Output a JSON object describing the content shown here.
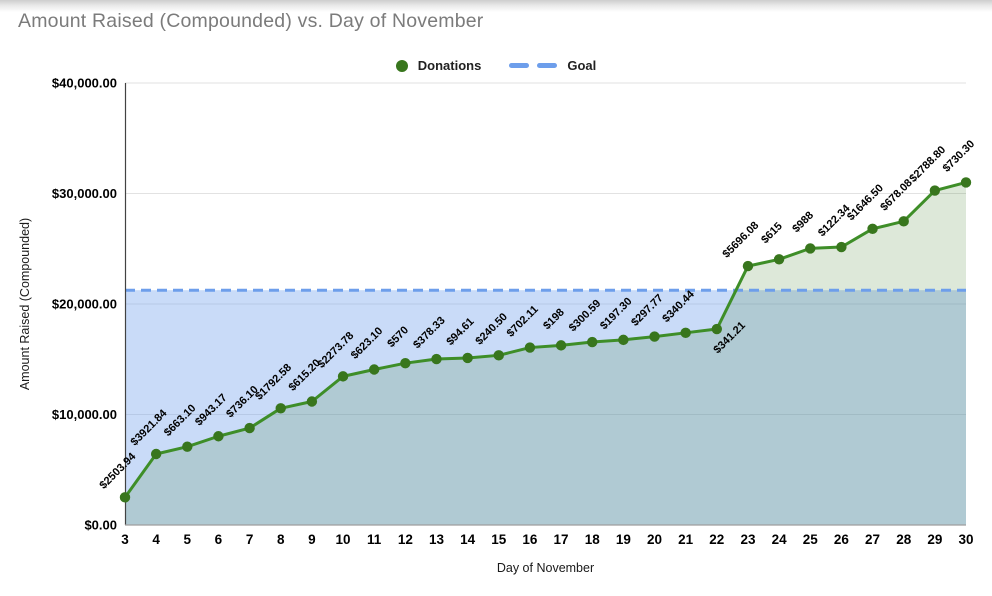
{
  "title": "Amount Raised (Compounded) vs. Day of November",
  "legend": {
    "donations_label": "Donations",
    "goal_label": "Goal"
  },
  "axes": {
    "x_title": "Day of November",
    "y_title": "Amount Raised (Compounded)",
    "y_ticks": [
      "$0.00",
      "$10,000.00",
      "$20,000.00",
      "$30,000.00",
      "$40,000.00"
    ],
    "x_ticks": [
      "3",
      "4",
      "5",
      "6",
      "7",
      "8",
      "9",
      "10",
      "11",
      "12",
      "13",
      "14",
      "15",
      "16",
      "17",
      "18",
      "19",
      "20",
      "21",
      "22",
      "23",
      "24",
      "25",
      "26",
      "27",
      "28",
      "29",
      "30"
    ]
  },
  "colors": {
    "title_text": "#7b7b7b",
    "tick_text": "#000000",
    "donations_green": "#38761d",
    "donations_line_green": "#3e8e28",
    "donations_fill": "rgba(56,118,29,0.17)",
    "goal_blue": "#6d9eeb",
    "goal_fill": "rgba(109,158,235,0.37)",
    "gridline": "#e2e2e2",
    "y_axis_line": "#424242",
    "baseline": "#9e9e9e"
  },
  "chart_data": {
    "type": "area",
    "title": "Amount Raised (Compounded) vs. Day of November",
    "xlabel": "Day of November",
    "ylabel": "Amount Raised (Compounded)",
    "x": [
      3,
      4,
      5,
      6,
      7,
      8,
      9,
      10,
      11,
      12,
      13,
      14,
      15,
      16,
      17,
      18,
      19,
      20,
      21,
      22,
      23,
      24,
      25,
      26,
      27,
      28,
      29,
      30
    ],
    "ylim": [
      0,
      40000
    ],
    "y_tick_step": 10000,
    "grid": "horizontal",
    "legend_position": "top-center",
    "series": [
      {
        "name": "Donations",
        "type": "area",
        "color": "#38761d",
        "line_color": "#3e8e28",
        "fill_color": "rgba(56,118,29,0.17)",
        "values": [
          2503.94,
          6425.78,
          7088.88,
          8032.05,
          8768.15,
          10560.73,
          11175.93,
          13449.71,
          14072.81,
          14642.81,
          15021.14,
          15115.75,
          15356.25,
          16058.36,
          16256.36,
          16556.95,
          16754.25,
          17052.02,
          17392.46,
          17733.67,
          23429.75,
          24044.75,
          25032.75,
          25155.09,
          26801.59,
          27479.67,
          30268.47,
          30998.77
        ],
        "daily_amounts": [
          2503.94,
          3921.84,
          663.1,
          943.17,
          736.1,
          1792.58,
          615.2,
          2273.78,
          623.1,
          570,
          378.33,
          94.61,
          240.5,
          702.11,
          198,
          300.59,
          197.3,
          297.77,
          340.44,
          341.21,
          5696.08,
          615,
          988,
          122.34,
          1646.5,
          678.08,
          2788.8,
          730.3
        ],
        "point_labels": [
          "$2503.94",
          "$3921.84",
          "$663.10",
          "$943.17",
          "$736.10",
          "$1792.58",
          "$615.20",
          "$2273.78",
          "$623.10",
          "$570",
          "$378.33",
          "$94.61",
          "$240.50",
          "$702.11",
          "$198",
          "$300.59",
          "$197.30",
          "$297.77",
          "$340.44",
          "$341.21",
          "$5696.08",
          "$615",
          "$988",
          "$122.34",
          "$1646.50",
          "$678.08",
          "$2788.80",
          "$730.30"
        ],
        "labels_below_indices": [
          19
        ]
      },
      {
        "name": "Goal",
        "type": "dashed-line",
        "color": "#6d9eeb",
        "fill_color": "rgba(109,158,235,0.37)",
        "value": 21250
      }
    ]
  }
}
